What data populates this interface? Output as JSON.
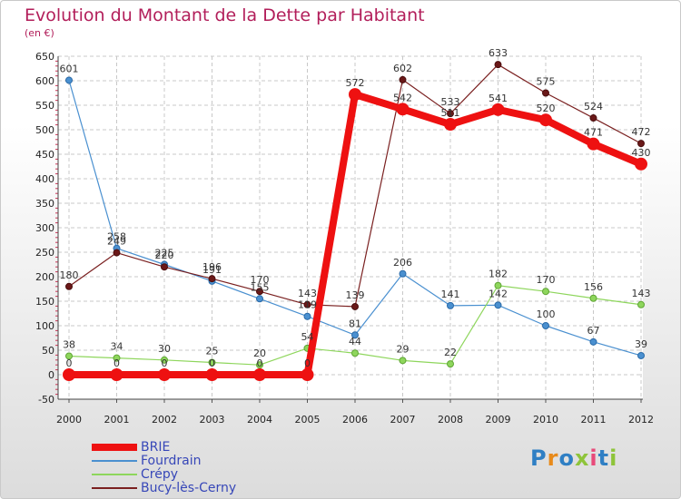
{
  "title": "Evolution du Montant de la Dette par Habitant",
  "unit": "(en €)",
  "logo": {
    "text": "Proxiti",
    "colors": [
      "#2f7fc4",
      "#e88a1a",
      "#2f7fc4",
      "#8ec43a",
      "#e84a7a",
      "#2f7fc4",
      "#8ec43a"
    ]
  },
  "chart_data": {
    "type": "line",
    "x": [
      "2000",
      "2001",
      "2002",
      "2003",
      "2004",
      "2005",
      "2006",
      "2007",
      "2008",
      "2009",
      "2010",
      "2011",
      "2012"
    ],
    "ylim": [
      -50,
      650
    ],
    "yticks": [
      -50,
      0,
      50,
      100,
      150,
      200,
      250,
      300,
      350,
      400,
      450,
      500,
      550,
      600,
      650
    ],
    "grid": true,
    "legend_position": "bottom-left",
    "series": [
      {
        "name": "BRIE",
        "color": "#ee1111",
        "values": [
          0,
          0,
          0,
          0,
          0,
          0,
          572,
          542,
          511,
          541,
          520,
          471,
          430
        ],
        "labels": [
          "0",
          "0",
          "0",
          "0",
          "0",
          "0",
          "572",
          "542",
          "511",
          "541",
          "520",
          "471",
          "430"
        ]
      },
      {
        "name": "Fourdrain",
        "color": "#4a90d0",
        "values": [
          601,
          258,
          225,
          191,
          155,
          119,
          81,
          206,
          141,
          142,
          100,
          67,
          39
        ],
        "labels": [
          "601",
          "258",
          "225",
          "191",
          "155",
          "119",
          "81",
          "206",
          "141",
          "142",
          "100",
          "67",
          "39"
        ]
      },
      {
        "name": "Crépy",
        "color": "#8ed65c",
        "values": [
          38,
          34,
          30,
          25,
          20,
          54,
          44,
          29,
          22,
          182,
          170,
          156,
          143
        ],
        "labels": [
          "38",
          "34",
          "30",
          "25",
          "20",
          "54",
          "44",
          "29",
          "22",
          "182",
          "170",
          "156",
          "143"
        ]
      },
      {
        "name": "Bucy-lès-Cerny",
        "color": "#7a2020",
        "values": [
          180,
          249,
          220,
          196,
          170,
          143,
          139,
          602,
          533,
          633,
          575,
          524,
          472
        ],
        "labels": [
          "180",
          "249",
          "220",
          "196",
          "170",
          "143",
          "139",
          "602",
          "533",
          "633",
          "575",
          "524",
          "472"
        ]
      }
    ]
  }
}
